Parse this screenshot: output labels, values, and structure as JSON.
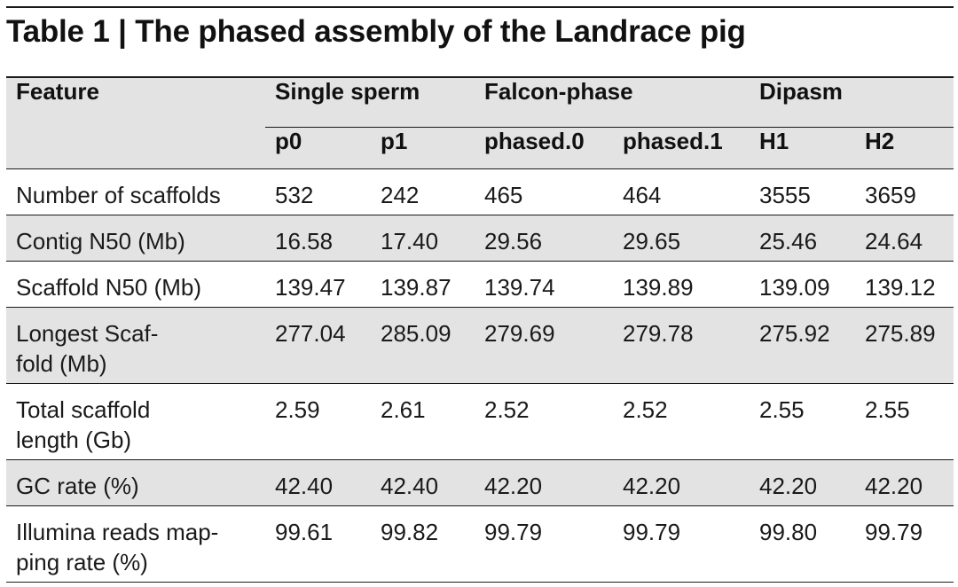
{
  "title": "Table 1 | The phased assembly of the Landrace pig",
  "table": {
    "feature_header": "Feature",
    "groups": [
      {
        "label": "Single sperm",
        "subcolumns": [
          "p0",
          "p1"
        ]
      },
      {
        "label": "Falcon-phase",
        "subcolumns": [
          "phased.0",
          "phased.1"
        ]
      },
      {
        "label": "Dipasm",
        "subcolumns": [
          "H1",
          "H2"
        ]
      }
    ],
    "rows": [
      {
        "feature_line1": "Number of scaffolds",
        "feature_line2": "",
        "values": [
          "532",
          "242",
          "465",
          "464",
          "3555",
          "3659"
        ]
      },
      {
        "feature_line1": "Contig N50 (Mb)",
        "feature_line2": "",
        "values": [
          "16.58",
          "17.40",
          "29.56",
          "29.65",
          "25.46",
          "24.64"
        ]
      },
      {
        "feature_line1": "Scaffold N50 (Mb)",
        "feature_line2": "",
        "values": [
          "139.47",
          "139.87",
          "139.74",
          "139.89",
          "139.09",
          "139.12"
        ]
      },
      {
        "feature_line1": "Longest Scaf-",
        "feature_line2": "fold (Mb)",
        "values": [
          "277.04",
          "285.09",
          "279.69",
          "279.78",
          "275.92",
          "275.89"
        ]
      },
      {
        "feature_line1": "Total scaffold",
        "feature_line2": "length (Gb)",
        "values": [
          "2.59",
          "2.61",
          "2.52",
          "2.52",
          "2.55",
          "2.55"
        ]
      },
      {
        "feature_line1": "GC rate (%)",
        "feature_line2": "",
        "values": [
          "42.40",
          "42.40",
          "42.20",
          "42.20",
          "42.20",
          "42.20"
        ]
      },
      {
        "feature_line1": "Illumina reads map-",
        "feature_line2": "ping rate (%)",
        "values": [
          "99.61",
          "99.82",
          "99.79",
          "99.79",
          "99.80",
          "99.79"
        ]
      }
    ]
  }
}
